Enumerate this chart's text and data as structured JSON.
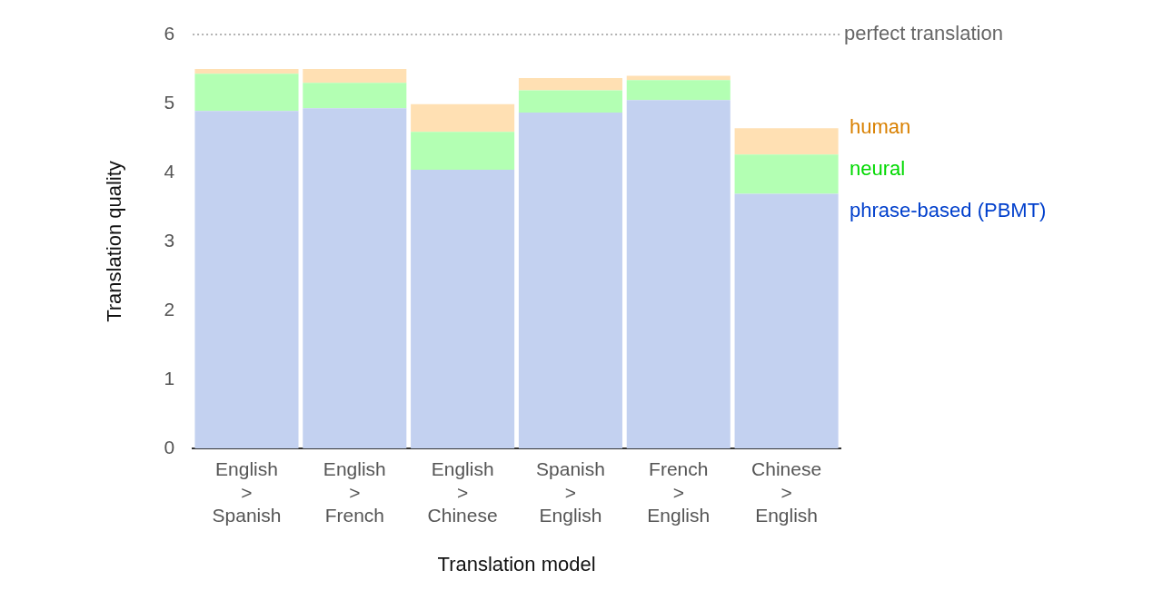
{
  "chart_data": {
    "type": "bar",
    "stacked": true,
    "xlabel": "Translation model",
    "ylabel": "Translation quality",
    "categories": [
      "English > Spanish",
      "English > French",
      "English > Chinese",
      "Spanish > English",
      "French > English",
      "Chinese > English"
    ],
    "series": [
      {
        "name": "phrase-based (PBMT)",
        "color": "#c3d1f0",
        "values": [
          4.89,
          4.93,
          4.04,
          4.87,
          5.05,
          3.69
        ]
      },
      {
        "name": "neural",
        "color": "#b3ffb3",
        "values": [
          0.54,
          0.37,
          0.55,
          0.32,
          0.29,
          0.57
        ]
      },
      {
        "name": "human",
        "color": "#ffe0b3",
        "values": [
          0.07,
          0.2,
          0.4,
          0.18,
          0.06,
          0.38
        ]
      }
    ],
    "ylim": [
      0,
      6
    ],
    "yticks": [
      0,
      1,
      2,
      3,
      4,
      5,
      6
    ],
    "grid": false,
    "ref_lines": [
      {
        "axis": "y",
        "value": 6,
        "label": "perfect translation",
        "color": "#999999",
        "line_style": "dotted"
      }
    ]
  }
}
